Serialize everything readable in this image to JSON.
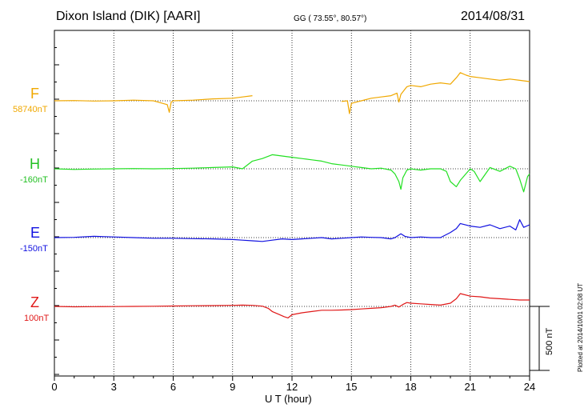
{
  "header": {
    "station": "Dixon Island (DIK)  [AARI]",
    "coords": "GG ( 73.55°,  80.57°)",
    "date": "2014/08/31"
  },
  "footnote": "Plotted at 2014/10/01 02:08 UT",
  "scale_bar": {
    "label": "500 nT",
    "nT": 500
  },
  "chart_data": {
    "type": "line",
    "title": "Dixon Island (DIK)  [AARI]",
    "xlabel": "U T (hour)",
    "ylabel": "",
    "xlim": [
      0,
      24
    ],
    "x_ticks": [
      "0",
      "3",
      "6",
      "9",
      "12",
      "15",
      "18",
      "21",
      "24"
    ],
    "grid": true,
    "series": [
      {
        "name": "F",
        "baseline_label": "58740nT",
        "baseline": 58740,
        "color": "#f0a800",
        "x": [
          0,
          1,
          2,
          3,
          4,
          5,
          5.7,
          5.8,
          5.9,
          6.0,
          7,
          8,
          9,
          9.5,
          10.0,
          14.0,
          14.5,
          14.8,
          14.9,
          15.0,
          15.5,
          16,
          16.5,
          17,
          17.3,
          17.4,
          17.5,
          17.6,
          17.8,
          18,
          18.5,
          19,
          19.5,
          20,
          20.3,
          20.5,
          20.8,
          21,
          21.5,
          22,
          22.5,
          23,
          23.5,
          24
        ],
        "y": [
          58740,
          58742,
          58738,
          58740,
          58745,
          58740,
          58710,
          58650,
          58730,
          58740,
          58745,
          58755,
          58760,
          58770,
          58780,
          null,
          58735,
          58740,
          58640,
          58720,
          58740,
          58760,
          58770,
          58780,
          58800,
          58730,
          58790,
          58810,
          58850,
          58860,
          58850,
          58870,
          58880,
          58870,
          58920,
          58960,
          58940,
          58930,
          58920,
          58910,
          58900,
          58910,
          58900,
          58890
        ]
      },
      {
        "name": "H",
        "baseline_label": "-160nT",
        "baseline": -160,
        "color": "#22e022",
        "x": [
          0,
          1,
          2,
          3,
          4,
          5,
          6,
          7,
          8,
          9,
          9.5,
          10,
          10.5,
          11,
          11.5,
          12,
          12.5,
          13,
          13.5,
          14,
          14.5,
          15,
          15.5,
          16,
          16.5,
          17,
          17.2,
          17.4,
          17.5,
          17.6,
          17.8,
          18,
          18.2,
          18.5,
          19,
          19.5,
          19.8,
          20,
          20.3,
          20.5,
          21,
          21.2,
          21.5,
          22,
          22.5,
          23,
          23.3,
          23.5,
          23.7,
          23.9,
          24
        ],
        "y": [
          -160,
          -165,
          -162,
          -160,
          -158,
          -160,
          -158,
          -155,
          -150,
          -145,
          -160,
          -100,
          -80,
          -50,
          -60,
          -70,
          -80,
          -90,
          -100,
          -120,
          -130,
          -140,
          -150,
          -160,
          -155,
          -170,
          -200,
          -260,
          -320,
          -230,
          -170,
          -160,
          -165,
          -170,
          -160,
          -160,
          -180,
          -260,
          -300,
          -250,
          -160,
          -180,
          -260,
          -150,
          -180,
          -140,
          -160,
          -240,
          -340,
          -220,
          -200
        ]
      },
      {
        "name": "E",
        "baseline_label": "-150nT",
        "baseline": -150,
        "color": "#1010e0",
        "x": [
          0,
          1,
          2,
          3,
          4,
          5,
          6,
          7,
          8,
          9,
          9.5,
          10,
          10.5,
          11,
          11.5,
          12,
          12.5,
          13,
          13.5,
          14,
          14.5,
          15,
          15.5,
          16,
          16.5,
          17,
          17.2,
          17.5,
          17.7,
          18,
          18.5,
          19,
          19.5,
          20,
          20.3,
          20.5,
          21,
          21.5,
          22,
          22.5,
          23,
          23.3,
          23.5,
          23.7,
          24
        ],
        "y": [
          -150,
          -148,
          -140,
          -145,
          -150,
          -155,
          -155,
          -158,
          -160,
          -165,
          -170,
          -175,
          -180,
          -170,
          -160,
          -165,
          -160,
          -155,
          -150,
          -160,
          -155,
          -150,
          -145,
          -148,
          -150,
          -160,
          -150,
          -120,
          -140,
          -150,
          -145,
          -150,
          -150,
          -110,
          -80,
          -40,
          -60,
          -70,
          -50,
          -80,
          -60,
          -90,
          -10,
          -70,
          -50
        ]
      },
      {
        "name": "Z",
        "baseline_label": "100nT",
        "baseline": 100,
        "color": "#e01818",
        "x": [
          0,
          1,
          2,
          3,
          4,
          5,
          6,
          7,
          8,
          9,
          9.5,
          10,
          10.5,
          10.8,
          11,
          11.3,
          11.6,
          11.8,
          12,
          12.5,
          13,
          13.5,
          14,
          14.5,
          15,
          15.5,
          16,
          16.5,
          17,
          17.2,
          17.4,
          17.6,
          17.8,
          18,
          18.5,
          19,
          19.5,
          20,
          20.3,
          20.5,
          21,
          21.5,
          22,
          22.5,
          23,
          23.5,
          24
        ],
        "y": [
          100,
          97,
          98,
          99,
          100,
          101,
          103,
          105,
          106,
          108,
          110,
          108,
          102,
          85,
          60,
          40,
          20,
          10,
          35,
          50,
          60,
          70,
          70,
          72,
          75,
          80,
          85,
          90,
          100,
          110,
          95,
          115,
          130,
          125,
          120,
          115,
          110,
          125,
          160,
          200,
          180,
          175,
          165,
          160,
          155,
          150,
          150
        ]
      }
    ]
  }
}
